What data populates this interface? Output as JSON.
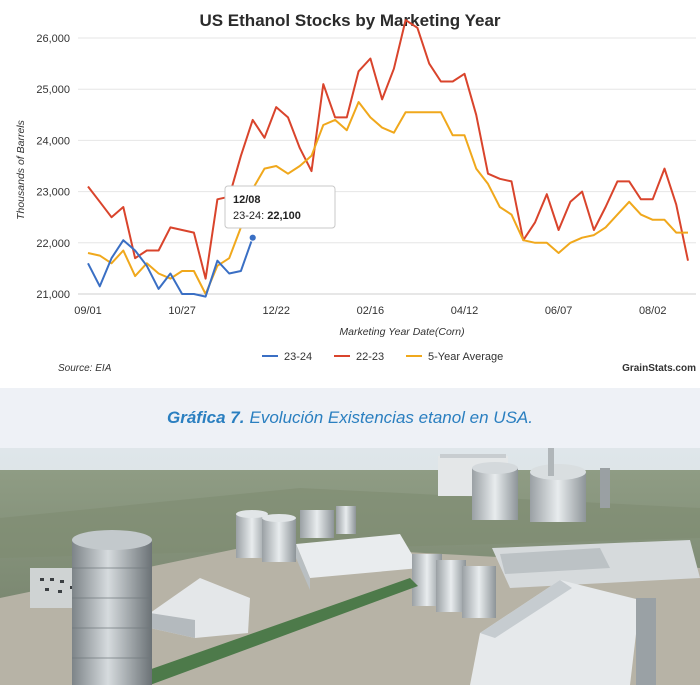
{
  "chart_data": {
    "type": "line",
    "title": "US Ethanol Stocks by Marketing Year",
    "xlabel": "Marketing Year Date(Corn)",
    "ylabel": "Thousands of Barrels",
    "ylim": [
      21000,
      26000
    ],
    "yticks": [
      "21,000",
      "22,000",
      "23,000",
      "24,000",
      "25,000",
      "26,000"
    ],
    "ytick_values": [
      21000,
      22000,
      23000,
      24000,
      25000,
      26000
    ],
    "xticks": [
      "09/01",
      "10/27",
      "12/22",
      "02/16",
      "04/12",
      "06/07",
      "08/02"
    ],
    "xtick_weeks": [
      0,
      8,
      16,
      24,
      32,
      40,
      48
    ],
    "grid": true,
    "legend_position": "bottom",
    "colors": {
      "23-24": "#3a6fc4",
      "22-23": "#d9442c",
      "5-Year Average": "#f0a81c"
    },
    "series": [
      {
        "name": "23-24",
        "values": [
          21600,
          21150,
          21700,
          22050,
          21850,
          21550,
          21100,
          21400,
          21000,
          21000,
          20950,
          21650,
          21400,
          21450,
          22100
        ]
      },
      {
        "name": "22-23",
        "values": [
          23100,
          22800,
          22500,
          22700,
          21700,
          21850,
          21850,
          22300,
          22250,
          22200,
          21300,
          22850,
          22900,
          23700,
          24400,
          24050,
          24650,
          24450,
          23850,
          23400,
          25100,
          24450,
          24450,
          25350,
          25600,
          24800,
          25400,
          26350,
          26200,
          25500,
          25150,
          25150,
          25300,
          24500,
          23350,
          23250,
          23200,
          22050,
          22400,
          22950,
          22250,
          22800,
          23000,
          22250,
          22700,
          23200,
          23200,
          22850,
          22850,
          23450,
          22750,
          21650
        ]
      },
      {
        "name": "5-Year Average",
        "values": [
          21800,
          21750,
          21600,
          21850,
          21350,
          21600,
          21400,
          21300,
          21450,
          21450,
          21000,
          21550,
          21700,
          22300,
          23050,
          23450,
          23500,
          23350,
          23500,
          23700,
          24300,
          24400,
          24200,
          24750,
          24450,
          24250,
          24150,
          24550,
          24550,
          24550,
          24550,
          24100,
          24100,
          23450,
          23150,
          22700,
          22550,
          22050,
          22000,
          22000,
          21800,
          22000,
          22100,
          22150,
          22300,
          22550,
          22800,
          22550,
          22450,
          22450,
          22200,
          22200
        ]
      }
    ],
    "tooltip": {
      "date": "12/08",
      "series": "23-24:",
      "value": "22,100"
    },
    "source": "Source: EIA",
    "watermark": "GrainStats.com"
  },
  "caption": {
    "label": "Gráfica 7.",
    "text": "Evolución Existencias etanol en USA."
  }
}
